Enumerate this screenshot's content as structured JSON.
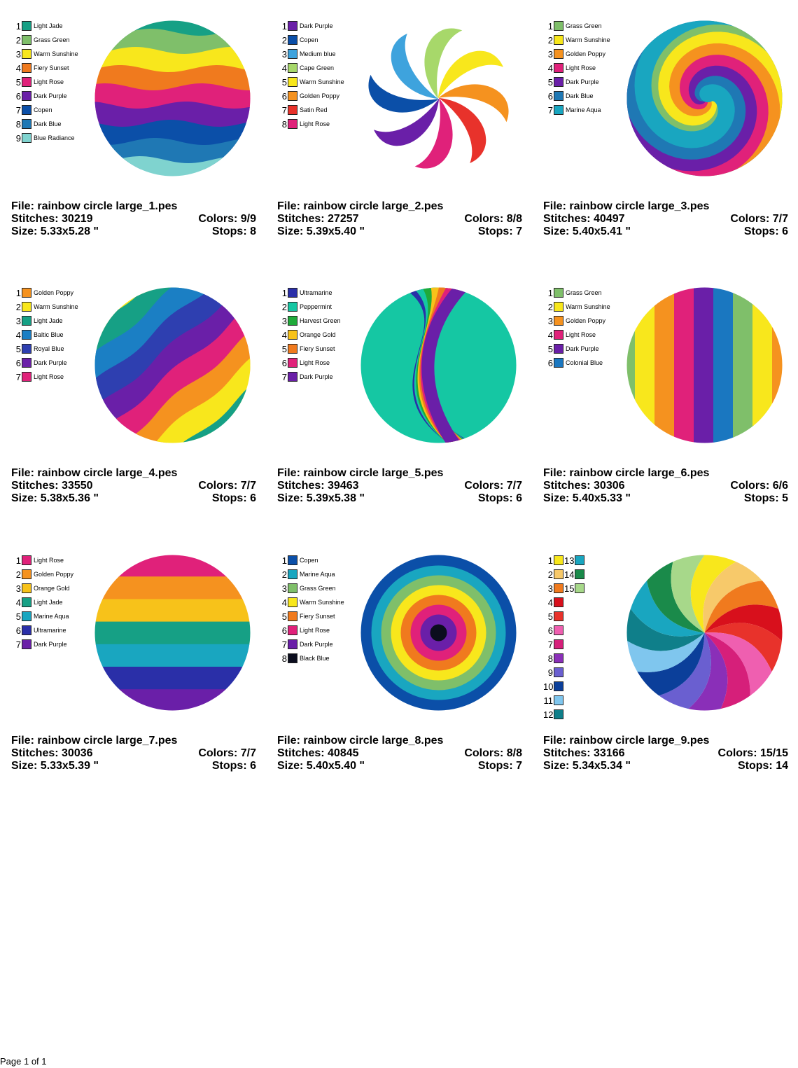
{
  "colors": {
    "light_jade": "#16a085",
    "grass_green": "#7fbf6a",
    "warm_sunshine": "#f8e71c",
    "fiery_sunset": "#f07a1e",
    "light_rose": "#e0217a",
    "dark_purple": "#6a1fa8",
    "copen": "#0b4fa8",
    "dark_blue": "#1f78b4",
    "blue_radiance": "#7fd3cf",
    "medium_blue": "#3ea3dd",
    "cape_green": "#a7d86a",
    "golden_poppy": "#f5921f",
    "satin_red": "#e8322b",
    "marine_aqua": "#19a6c0",
    "baltic_blue": "#1b7fc4",
    "royal_blue": "#2e3fb0",
    "ultramarine": "#2a2fa8",
    "peppermint": "#15c7a3",
    "harvest_green": "#1faa3a",
    "orange_gold": "#f7c21a",
    "colonial_blue": "#1a77c0",
    "black_blue": "#0b0d1e"
  },
  "designs": [
    {
      "file": "File: rainbow circle large_1.pes",
      "stitches": "Stitches: 30219",
      "size": "Size: 5.33x5.28 \"",
      "colors_count": "Colors: 9/9",
      "stops": "Stops: 8",
      "legend": [
        [
          "1",
          "Light Jade",
          "#16a085"
        ],
        [
          "2",
          "Grass Green",
          "#7fbf6a"
        ],
        [
          "3",
          "Warm Sunshine",
          "#f8e71c"
        ],
        [
          "4",
          "Fiery Sunset",
          "#f07a1e"
        ],
        [
          "5",
          "Light Rose",
          "#e0217a"
        ],
        [
          "6",
          "Dark Purple",
          "#6a1fa8"
        ],
        [
          "7",
          "Copen",
          "#0b4fa8"
        ],
        [
          "8",
          "Dark Blue",
          "#1f78b4"
        ],
        [
          "9",
          "Blue Radiance",
          "#7fd3cf"
        ]
      ]
    },
    {
      "file": "File: rainbow circle large_2.pes",
      "stitches": "Stitches: 27257",
      "size": "Size: 5.39x5.40 \"",
      "colors_count": "Colors: 8/8",
      "stops": "Stops: 7",
      "legend": [
        [
          "1",
          "Dark Purple",
          "#6a1fa8"
        ],
        [
          "2",
          "Copen",
          "#0b4fa8"
        ],
        [
          "3",
          "Medium blue",
          "#3ea3dd"
        ],
        [
          "4",
          "Cape Green",
          "#a7d86a"
        ],
        [
          "5",
          "Warm Sunshine",
          "#f8e71c"
        ],
        [
          "6",
          "Golden Poppy",
          "#f5921f"
        ],
        [
          "7",
          "Satin Red",
          "#e8322b"
        ],
        [
          "8",
          "Light Rose",
          "#e0217a"
        ]
      ]
    },
    {
      "file": "File: rainbow circle large_3.pes",
      "stitches": "Stitches: 40497",
      "size": "Size: 5.40x5.41 \"",
      "colors_count": "Colors: 7/7",
      "stops": "Stops: 6",
      "legend": [
        [
          "1",
          "Grass Green",
          "#7fbf6a"
        ],
        [
          "2",
          "Warm Sunshine",
          "#f8e71c"
        ],
        [
          "3",
          "Golden Poppy",
          "#f5921f"
        ],
        [
          "4",
          "Light Rose",
          "#e0217a"
        ],
        [
          "5",
          "Dark Purple",
          "#6a1fa8"
        ],
        [
          "6",
          "Dark Blue",
          "#1f78b4"
        ],
        [
          "7",
          "Marine Aqua",
          "#19a6c0"
        ]
      ]
    },
    {
      "file": "File: rainbow circle large_4.pes",
      "stitches": "Stitches: 33550",
      "size": "Size: 5.38x5.36 \"",
      "colors_count": "Colors: 7/7",
      "stops": "Stops: 6",
      "legend": [
        [
          "1",
          "Golden Poppy",
          "#f5921f"
        ],
        [
          "2",
          "Warm Sunshine",
          "#f8e71c"
        ],
        [
          "3",
          "Light Jade",
          "#16a085"
        ],
        [
          "4",
          "Baltic Blue",
          "#1b7fc4"
        ],
        [
          "5",
          "Royal Blue",
          "#2e3fb0"
        ],
        [
          "6",
          "Dark Purple",
          "#6a1fa8"
        ],
        [
          "7",
          "Light Rose",
          "#e0217a"
        ]
      ]
    },
    {
      "file": "File: rainbow circle large_5.pes",
      "stitches": "Stitches: 39463",
      "size": "Size: 5.39x5.38 \"",
      "colors_count": "Colors: 7/7",
      "stops": "Stops: 6",
      "legend": [
        [
          "1",
          "Ultramarine",
          "#2a2fa8"
        ],
        [
          "2",
          "Peppermint",
          "#15c7a3"
        ],
        [
          "3",
          "Harvest Green",
          "#1faa3a"
        ],
        [
          "4",
          "Orange Gold",
          "#f7c21a"
        ],
        [
          "5",
          "Fiery Sunset",
          "#f07a1e"
        ],
        [
          "6",
          "Light Rose",
          "#e0217a"
        ],
        [
          "7",
          "Dark Purple",
          "#6a1fa8"
        ]
      ]
    },
    {
      "file": "File: rainbow circle large_6.pes",
      "stitches": "Stitches: 30306",
      "size": "Size: 5.40x5.33 \"",
      "colors_count": "Colors: 6/6",
      "stops": "Stops: 5",
      "legend": [
        [
          "1",
          "Grass Green",
          "#7fbf6a"
        ],
        [
          "2",
          "Warm Sunshine",
          "#f8e71c"
        ],
        [
          "3",
          "Golden Poppy",
          "#f5921f"
        ],
        [
          "4",
          "Light Rose",
          "#e0217a"
        ],
        [
          "5",
          "Dark Purple",
          "#6a1fa8"
        ],
        [
          "6",
          "Colonial Blue",
          "#1a77c0"
        ]
      ]
    },
    {
      "file": "File: rainbow circle large_7.pes",
      "stitches": "Stitches: 30036",
      "size": "Size: 5.33x5.39 \"",
      "colors_count": "Colors: 7/7",
      "stops": "Stops: 6",
      "legend": [
        [
          "1",
          "Light Rose",
          "#e0217a"
        ],
        [
          "2",
          "Golden Poppy",
          "#f5921f"
        ],
        [
          "3",
          "Orange Gold",
          "#f7c21a"
        ],
        [
          "4",
          "Light Jade",
          "#16a085"
        ],
        [
          "5",
          "Marine Aqua",
          "#19a6c0"
        ],
        [
          "6",
          "Ultramarine",
          "#2a2fa8"
        ],
        [
          "7",
          "Dark Purple",
          "#6a1fa8"
        ]
      ]
    },
    {
      "file": "File: rainbow circle large_8.pes",
      "stitches": "Stitches: 40845",
      "size": "Size: 5.40x5.40 \"",
      "colors_count": "Colors: 8/8",
      "stops": "Stops: 7",
      "legend": [
        [
          "1",
          "Copen",
          "#0b4fa8"
        ],
        [
          "2",
          "Marine Aqua",
          "#19a6c0"
        ],
        [
          "3",
          "Grass Green",
          "#7fbf6a"
        ],
        [
          "4",
          "Warm Sunshine",
          "#f8e71c"
        ],
        [
          "5",
          "Fiery Sunset",
          "#f07a1e"
        ],
        [
          "6",
          "Light Rose",
          "#e0217a"
        ],
        [
          "7",
          "Dark Purple",
          "#6a1fa8"
        ],
        [
          "8",
          "Black Blue",
          "#0b0d1e"
        ]
      ]
    },
    {
      "file": "File: rainbow circle large_9.pes",
      "stitches": "Stitches: 33166",
      "size": "Size: 5.34x5.34 \"",
      "colors_count": "Colors: 15/15",
      "stops": "Stops: 14",
      "legend": [
        [
          "1",
          "",
          "#f8e71c"
        ],
        [
          "2",
          "",
          "#f7c96a"
        ],
        [
          "3",
          "",
          "#f07a1e"
        ],
        [
          "4",
          "",
          "#d8101c"
        ],
        [
          "5",
          "",
          "#e8322b"
        ],
        [
          "6",
          "",
          "#ef5fb0"
        ],
        [
          "7",
          "",
          "#d61f7a"
        ],
        [
          "8",
          "",
          "#8a2fb8"
        ],
        [
          "9",
          "",
          "#6a5fd0"
        ],
        [
          "10",
          "",
          "#0b3f9a"
        ],
        [
          "11",
          "",
          "#7fc6ee"
        ],
        [
          "12",
          "",
          "#0f7f8a"
        ],
        [
          "13",
          "",
          "#19a6c0"
        ],
        [
          "14",
          "",
          "#1a8a4a"
        ],
        [
          "15",
          "",
          "#a7d88a"
        ]
      ]
    }
  ],
  "footer": "Page 1 of 1"
}
